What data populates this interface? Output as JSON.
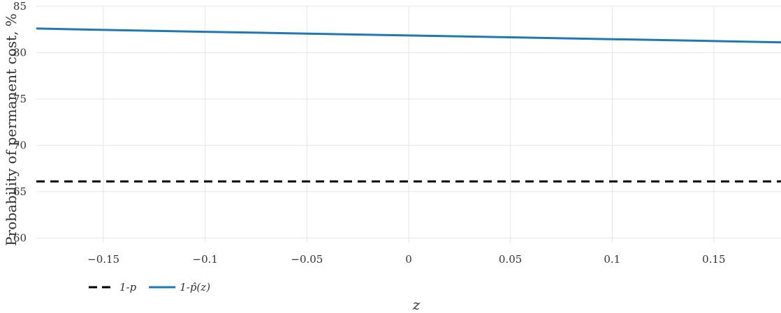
{
  "chart_data": {
    "type": "line",
    "xlabel": "z",
    "ylabel": "Probability of permanent cost, %",
    "xlim": [
      -0.183,
      0.183
    ],
    "ylim": [
      59.5,
      85
    ],
    "x_ticks": [
      -0.15,
      -0.1,
      -0.05,
      0,
      0.05,
      0.1,
      0.15
    ],
    "x_tick_labels": [
      "−0.15",
      "−0.1",
      "−0.05",
      "0",
      "0.05",
      "0.1",
      "0.15"
    ],
    "y_ticks": [
      60,
      65,
      70,
      75,
      80,
      85
    ],
    "y_tick_labels": [
      "60",
      "65",
      "70",
      "75",
      "80",
      "85"
    ],
    "grid": true,
    "legend_position": "bottom-left",
    "series": [
      {
        "name": "1-p",
        "style": "dashed",
        "color": "#000000",
        "x": [
          -0.183,
          0.183
        ],
        "y": [
          66.1,
          66.1
        ]
      },
      {
        "name": "1-p̂(z)",
        "style": "solid",
        "color": "#1f77b4",
        "x": [
          -0.183,
          -0.15,
          -0.1,
          -0.05,
          0,
          0.05,
          0.1,
          0.15,
          0.183
        ],
        "y": [
          82.6,
          82.45,
          82.25,
          82.05,
          81.85,
          81.65,
          81.45,
          81.25,
          81.1
        ]
      }
    ]
  }
}
